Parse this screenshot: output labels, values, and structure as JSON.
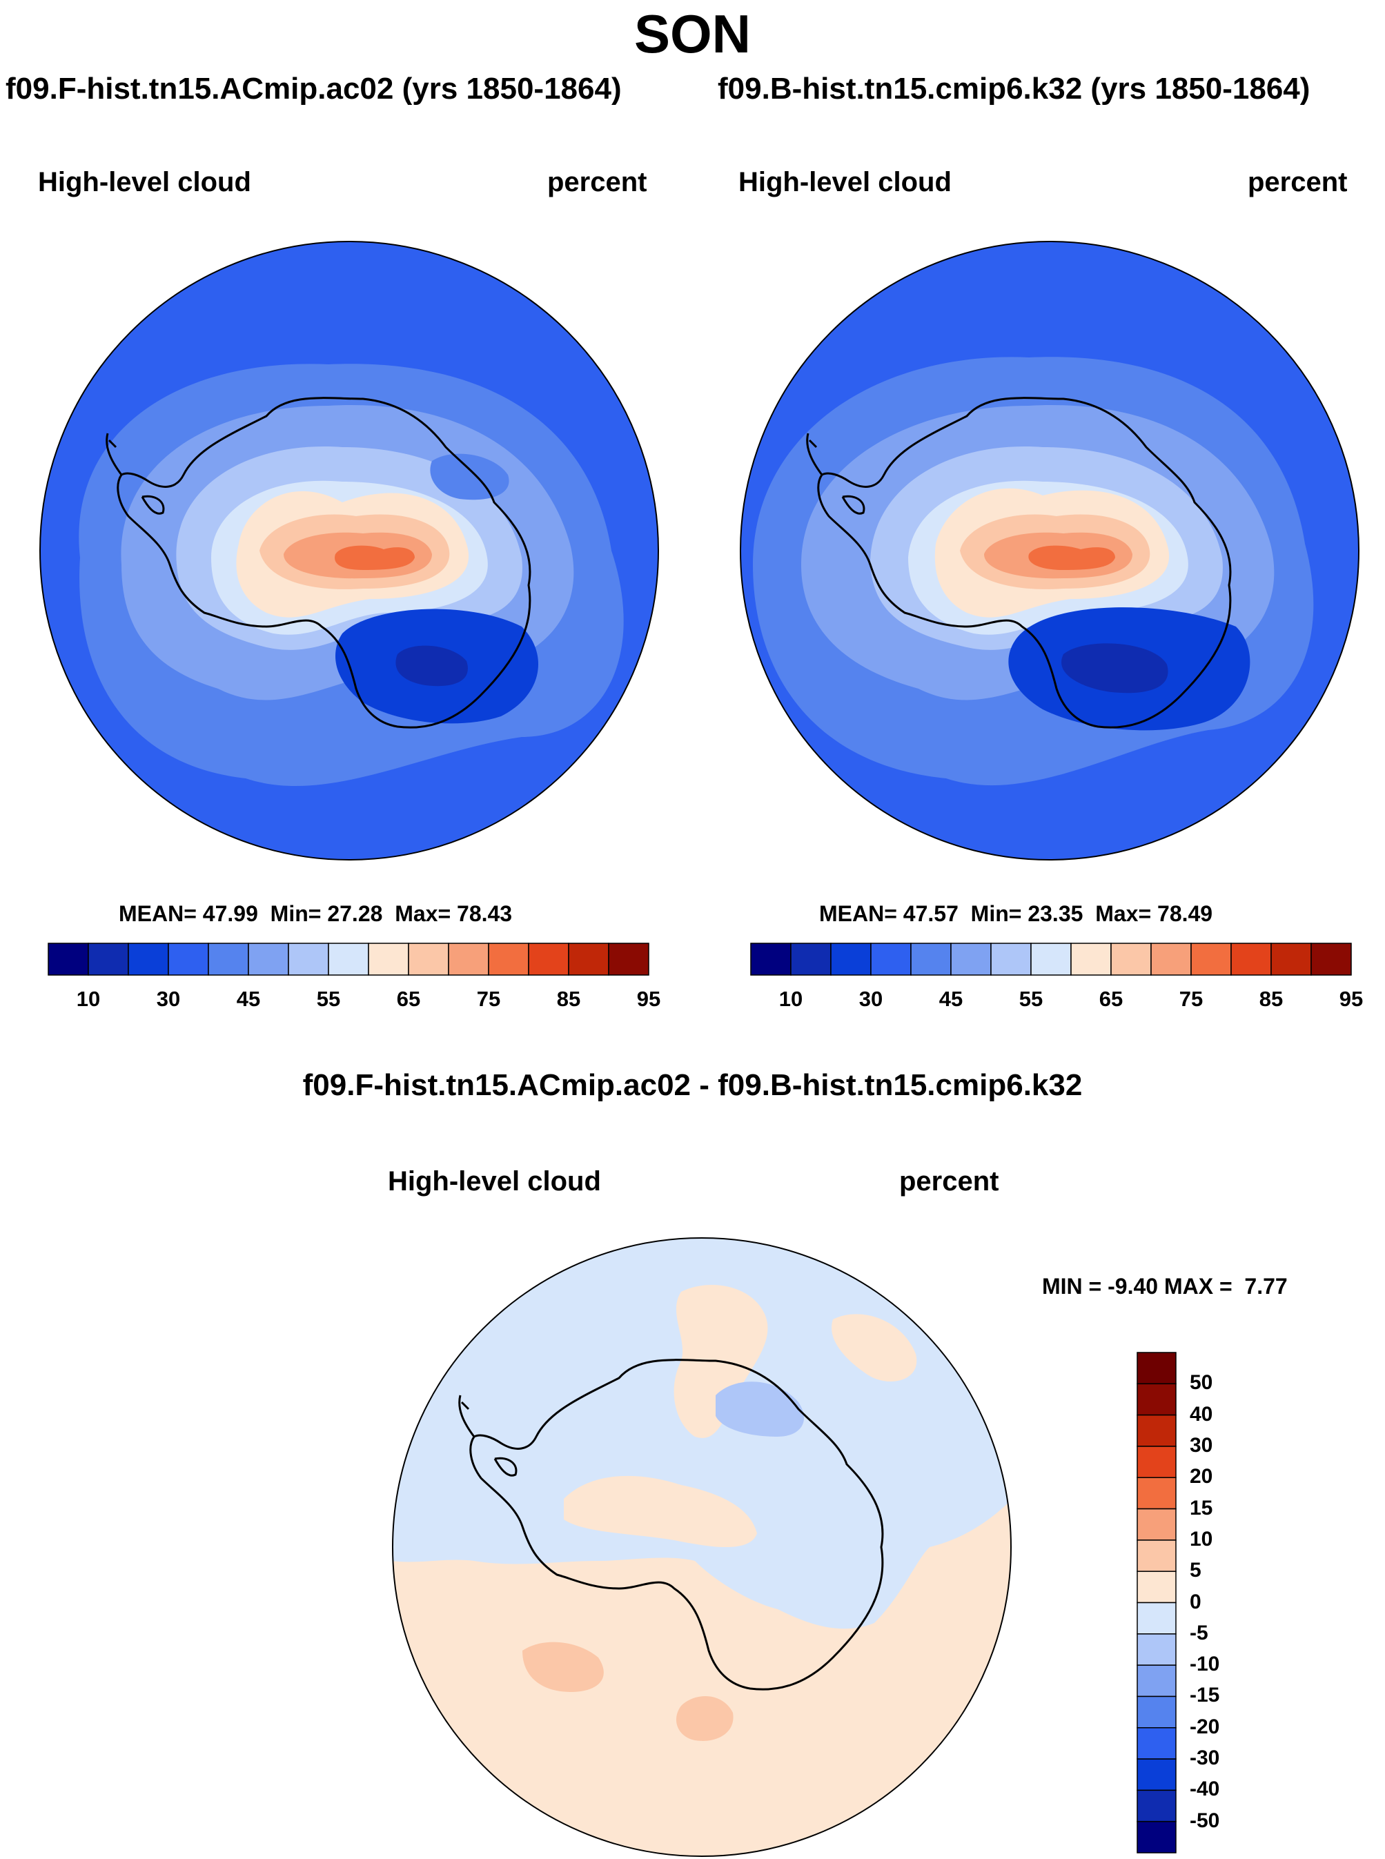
{
  "figure": {
    "season": "SON",
    "case1_title": "f09.F-hist.tn15.ACmip.ac02 (yrs 1850-1864)",
    "case2_title": "f09.B-hist.tn15.cmip6.k32 (yrs 1850-1864)",
    "diff_title": "f09.F-hist.tn15.ACmip.ac02 - f09.B-hist.tn15.cmip6.k32"
  },
  "panels": [
    {
      "variable": "High-level cloud",
      "units": "percent",
      "mean_label": "MEAN=",
      "mean": "47.99",
      "min_label": "Min=",
      "min": "27.28",
      "max_label": "Max=",
      "max": "78.43"
    },
    {
      "variable": "High-level cloud",
      "units": "percent",
      "mean_label": "MEAN=",
      "mean": "47.57",
      "min_label": "Min=",
      "min": "23.35",
      "max_label": "Max=",
      "max": "78.49"
    },
    {
      "variable": "High-level cloud",
      "units": "percent",
      "min_label": "MIN =",
      "min": "-9.40",
      "max_label": "MAX =",
      "max": "7.77"
    }
  ],
  "chart_data": [
    {
      "type": "heatmap",
      "title": "f09.F-hist.tn15.ACmip.ac02 (yrs 1850-1864)",
      "projection": "south-polar-stereographic",
      "variable": "High-level cloud",
      "units": "percent",
      "mean": 47.99,
      "min": 27.28,
      "max": 78.43,
      "contour_levels": [
        10,
        20,
        30,
        40,
        45,
        50,
        55,
        60,
        65,
        70,
        75,
        80,
        85,
        90,
        95
      ],
      "colorbar_ticks": [
        "10",
        "30",
        "45",
        "55",
        "65",
        "75",
        "85",
        "95"
      ],
      "colors": [
        "#00007f",
        "#0f2cb0",
        "#0a3fd8",
        "#2e60f0",
        "#5583ee",
        "#7fa2f2",
        "#aec6f8",
        "#d6e6fb",
        "#fde6d2",
        "#fbc7a8",
        "#f7a07a",
        "#f26e3f",
        "#e3431b",
        "#c02708",
        "#8a0a02"
      ]
    },
    {
      "type": "heatmap",
      "title": "f09.B-hist.tn15.cmip6.k32 (yrs 1850-1864)",
      "projection": "south-polar-stereographic",
      "variable": "High-level cloud",
      "units": "percent",
      "mean": 47.57,
      "min": 23.35,
      "max": 78.49,
      "contour_levels": [
        10,
        20,
        30,
        40,
        45,
        50,
        55,
        60,
        65,
        70,
        75,
        80,
        85,
        90,
        95
      ],
      "colorbar_ticks": [
        "10",
        "30",
        "45",
        "55",
        "65",
        "75",
        "85",
        "95"
      ],
      "colors": [
        "#00007f",
        "#0f2cb0",
        "#0a3fd8",
        "#2e60f0",
        "#5583ee",
        "#7fa2f2",
        "#aec6f8",
        "#d6e6fb",
        "#fde6d2",
        "#fbc7a8",
        "#f7a07a",
        "#f26e3f",
        "#e3431b",
        "#c02708",
        "#8a0a02"
      ]
    },
    {
      "type": "heatmap",
      "title": "f09.F-hist.tn15.ACmip.ac02 - f09.B-hist.tn15.cmip6.k32",
      "projection": "south-polar-stereographic",
      "variable": "High-level cloud",
      "units": "percent",
      "min": -9.4,
      "max": 7.77,
      "contour_levels": [
        -50,
        -40,
        -30,
        -20,
        -15,
        -10,
        -5,
        0,
        5,
        10,
        15,
        20,
        30,
        40,
        50
      ],
      "colorbar_ticks": [
        "50",
        "40",
        "30",
        "20",
        "15",
        "10",
        "5",
        "0",
        "-5",
        "-10",
        "-15",
        "-20",
        "-30",
        "-40",
        "-50"
      ],
      "colors": [
        "#00007f",
        "#0f2cb0",
        "#0a3fd8",
        "#2e60f0",
        "#5583ee",
        "#7fa2f2",
        "#aec6f8",
        "#d6e6fb",
        "#fde6d2",
        "#fbc7a8",
        "#f7a07a",
        "#f26e3f",
        "#e3431b",
        "#c02708",
        "#8a0a02",
        "#6e0000"
      ]
    }
  ]
}
